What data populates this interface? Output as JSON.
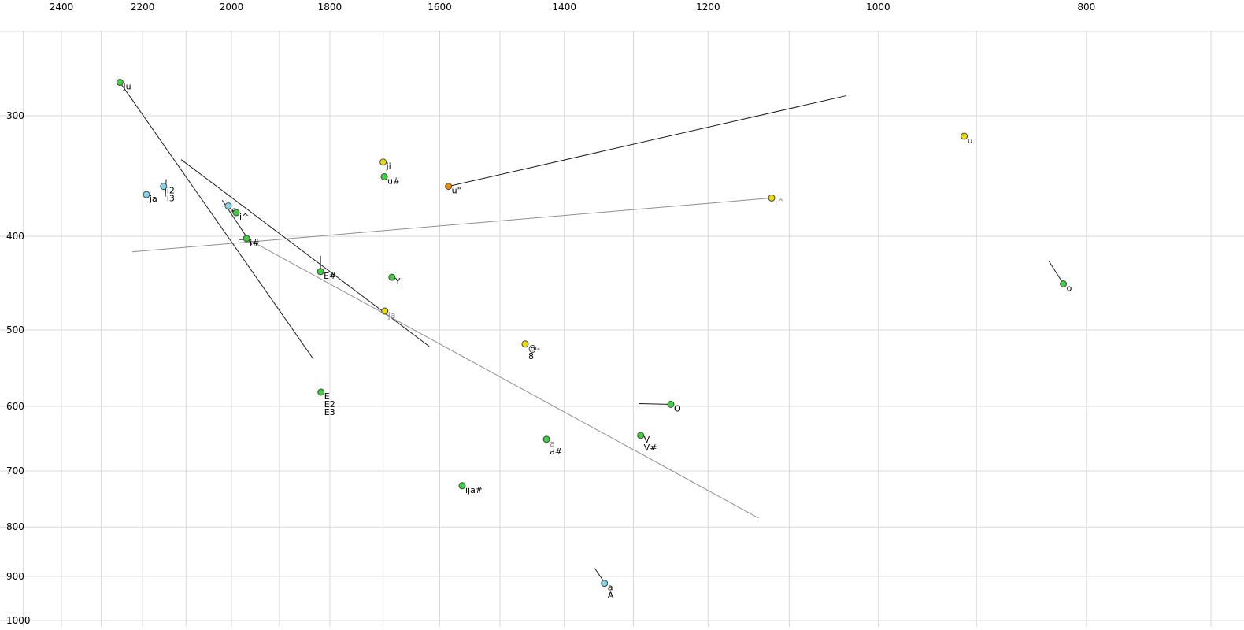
{
  "chart_data": {
    "type": "scatter",
    "description": "Vowel formant plot, F2 (Hz) on reversed log x-axis, F1 (Hz) on downward log y-axis",
    "x_axis": {
      "scale": "log",
      "reversed": true,
      "tick_labels": [
        2400,
        2200,
        2000,
        1800,
        1600,
        1400,
        1200,
        1000,
        800
      ],
      "grid_from": 2500,
      "grid_to": 700,
      "grid_step": 100
    },
    "y_axis": {
      "scale": "log",
      "increases_downward": true,
      "tick_labels": [
        300,
        400,
        500,
        600,
        700,
        800,
        900,
        1000
      ],
      "grid_from": 300,
      "grid_to": 1000,
      "grid_step": 100
    },
    "colors": {
      "green": "#3bd33b",
      "yellow": "#e8df00",
      "cyan": "#7fd7e8",
      "orange": "#f08c00",
      "grid": "#d9d9d9",
      "black": "#1a1a1a",
      "gray": "#8f8f8f",
      "label_black": "#000000",
      "label_gray": "#8a8a8a",
      "point_outline": "#444444"
    },
    "points": [
      {
        "label": "Ju",
        "f2": 2254,
        "f1": 277,
        "color": "green",
        "labels": [
          {
            "t": "Ju"
          }
        ]
      },
      {
        "label": "ji",
        "f2": 1700,
        "f1": 335,
        "color": "yellow",
        "labels": [
          {
            "t": "ji"
          }
        ]
      },
      {
        "label": "u#",
        "f2": 1698,
        "f1": 347,
        "color": "green",
        "labels": [
          {
            "t": "u#"
          }
        ]
      },
      {
        "label": "u\"",
        "f2": 1585,
        "f1": 355,
        "color": "orange",
        "labels": [
          {
            "t": "u\""
          }
        ]
      },
      {
        "label": "u",
        "f2": 912,
        "f1": 315,
        "color": "yellow",
        "labels": [
          {
            "t": "u"
          }
        ]
      },
      {
        "label": "i^r",
        "f2": 1121,
        "f1": 365,
        "color": "yellow",
        "labels": [
          {
            "t": "i^",
            "c": "label_gray"
          }
        ]
      },
      {
        "label": "ja-l",
        "f2": 2191,
        "f1": 362,
        "color": "cyan",
        "labels": [
          {
            "t": "ja"
          }
        ]
      },
      {
        "label": "i2",
        "f2": 2151,
        "f1": 355,
        "color": "cyan",
        "labels": [
          {
            "t": "i2"
          },
          {
            "t": "i3"
          }
        ]
      },
      {
        "label": "e",
        "f2": 2007,
        "f1": 372,
        "color": "cyan",
        "labels": [
          {
            "t": "e"
          }
        ]
      },
      {
        "label": "i^",
        "f2": 1990,
        "f1": 378,
        "color": "green",
        "labels": [
          {
            "t": "i^"
          }
        ]
      },
      {
        "label": "i#",
        "f2": 1968,
        "f1": 402,
        "color": "green",
        "labels": [
          {
            "t": "i#"
          }
        ]
      },
      {
        "label": "E#",
        "f2": 1818,
        "f1": 435,
        "color": "green",
        "labels": [
          {
            "t": "E#"
          }
        ]
      },
      {
        "label": "Y",
        "f2": 1684,
        "f1": 441,
        "color": "green",
        "labels": [
          {
            "t": "Y"
          }
        ]
      },
      {
        "label": "ja",
        "f2": 1697,
        "f1": 478,
        "color": "yellow",
        "labels": [
          {
            "t": "ja",
            "c": "label_gray"
          }
        ]
      },
      {
        "label": "@-",
        "f2": 1460,
        "f1": 517,
        "color": "yellow",
        "labels": [
          {
            "t": "@-"
          },
          {
            "t": "8"
          }
        ]
      },
      {
        "label": "E",
        "f2": 1817,
        "f1": 580,
        "color": "green",
        "labels": [
          {
            "t": "E"
          },
          {
            "t": "E2"
          },
          {
            "t": "E3"
          }
        ]
      },
      {
        "label": "O",
        "f2": 1249,
        "f1": 597,
        "color": "green",
        "labels": [
          {
            "t": "O"
          }
        ]
      },
      {
        "label": "a",
        "f2": 1427,
        "f1": 649,
        "color": "green",
        "labels": [
          {
            "t": "a",
            "c": "label_gray"
          },
          {
            "t": "a#"
          }
        ]
      },
      {
        "label": "V",
        "f2": 1290,
        "f1": 643,
        "color": "green",
        "labels": [
          {
            "t": "V"
          },
          {
            "t": "V#"
          }
        ]
      },
      {
        "label": "ija#",
        "f2": 1562,
        "f1": 725,
        "color": "green",
        "labels": [
          {
            "t": "ija#"
          }
        ]
      },
      {
        "label": "A",
        "f2": 1341,
        "f1": 915,
        "color": "cyan",
        "labels": [
          {
            "t": "a"
          },
          {
            "t": "A"
          }
        ]
      },
      {
        "label": "o",
        "f2": 820,
        "f1": 448,
        "color": "green",
        "labels": [
          {
            "t": "o"
          }
        ]
      }
    ],
    "segments": [
      {
        "f2a": 2254,
        "f1a": 277,
        "f2b": 1832,
        "f1b": 536,
        "color": "black"
      },
      {
        "f2a": 2111,
        "f1a": 333,
        "f2b": 1618,
        "f1b": 520,
        "color": "black"
      },
      {
        "f2a": 2225,
        "f1a": 415,
        "f2b": 1121,
        "f1b": 365,
        "color": "gray"
      },
      {
        "f2a": 1968,
        "f1a": 402,
        "f2b": 1137,
        "f1b": 783,
        "color": "gray"
      },
      {
        "f2a": 1585,
        "f1a": 355,
        "f2b": 1035,
        "f1b": 286,
        "color": "black"
      },
      {
        "f2a": 1818,
        "f1a": 419,
        "f2b": 1818,
        "f1b": 434,
        "color": "black"
      },
      {
        "f2a": 2145,
        "f1a": 349,
        "f2b": 2147,
        "f1b": 364,
        "color": "black"
      },
      {
        "f2a": 2020,
        "f1a": 367,
        "f2b": 1957,
        "f1b": 408,
        "color": "black"
      },
      {
        "f2a": 1985,
        "f1a": 403,
        "f2b": 1968,
        "f1b": 403,
        "color": "black"
      },
      {
        "f2a": 1292,
        "f1a": 596,
        "f2b": 1253,
        "f1b": 597,
        "color": "black"
      },
      {
        "f2a": 833,
        "f1a": 424,
        "f2b": 821,
        "f1b": 446,
        "color": "black"
      },
      {
        "f2a": 1355,
        "f1a": 883,
        "f2b": 1342,
        "f1b": 911,
        "color": "black"
      }
    ]
  }
}
